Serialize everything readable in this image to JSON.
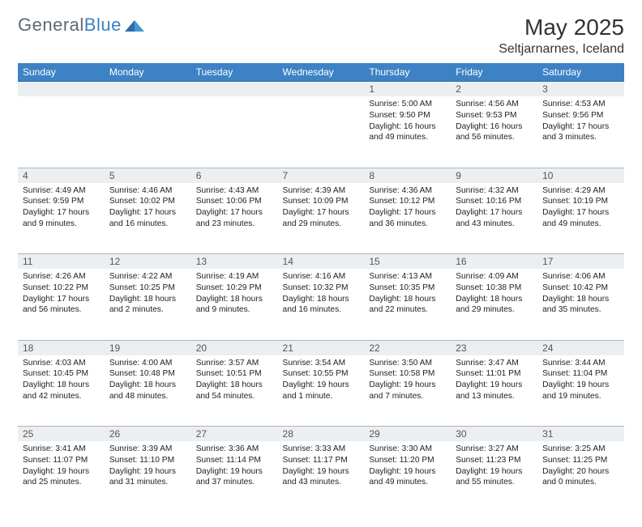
{
  "logo": {
    "word1": "General",
    "word2": "Blue",
    "mark_color": "#2e6da6"
  },
  "title": "May 2025",
  "location": "Seltjarnarnes, Iceland",
  "colors": {
    "header_bg": "#3d82c4",
    "header_text": "#ffffff",
    "daynum_bg": "#eceff1",
    "daynum_border": "#aab5bf",
    "body_text": "#222222",
    "page_bg": "#ffffff"
  },
  "day_headers": [
    "Sunday",
    "Monday",
    "Tuesday",
    "Wednesday",
    "Thursday",
    "Friday",
    "Saturday"
  ],
  "weeks": [
    [
      null,
      null,
      null,
      null,
      {
        "n": "1",
        "sr": "5:00 AM",
        "ss": "9:50 PM",
        "dl": "16 hours and 49 minutes."
      },
      {
        "n": "2",
        "sr": "4:56 AM",
        "ss": "9:53 PM",
        "dl": "16 hours and 56 minutes."
      },
      {
        "n": "3",
        "sr": "4:53 AM",
        "ss": "9:56 PM",
        "dl": "17 hours and 3 minutes."
      }
    ],
    [
      {
        "n": "4",
        "sr": "4:49 AM",
        "ss": "9:59 PM",
        "dl": "17 hours and 9 minutes."
      },
      {
        "n": "5",
        "sr": "4:46 AM",
        "ss": "10:02 PM",
        "dl": "17 hours and 16 minutes."
      },
      {
        "n": "6",
        "sr": "4:43 AM",
        "ss": "10:06 PM",
        "dl": "17 hours and 23 minutes."
      },
      {
        "n": "7",
        "sr": "4:39 AM",
        "ss": "10:09 PM",
        "dl": "17 hours and 29 minutes."
      },
      {
        "n": "8",
        "sr": "4:36 AM",
        "ss": "10:12 PM",
        "dl": "17 hours and 36 minutes."
      },
      {
        "n": "9",
        "sr": "4:32 AM",
        "ss": "10:16 PM",
        "dl": "17 hours and 43 minutes."
      },
      {
        "n": "10",
        "sr": "4:29 AM",
        "ss": "10:19 PM",
        "dl": "17 hours and 49 minutes."
      }
    ],
    [
      {
        "n": "11",
        "sr": "4:26 AM",
        "ss": "10:22 PM",
        "dl": "17 hours and 56 minutes."
      },
      {
        "n": "12",
        "sr": "4:22 AM",
        "ss": "10:25 PM",
        "dl": "18 hours and 2 minutes."
      },
      {
        "n": "13",
        "sr": "4:19 AM",
        "ss": "10:29 PM",
        "dl": "18 hours and 9 minutes."
      },
      {
        "n": "14",
        "sr": "4:16 AM",
        "ss": "10:32 PM",
        "dl": "18 hours and 16 minutes."
      },
      {
        "n": "15",
        "sr": "4:13 AM",
        "ss": "10:35 PM",
        "dl": "18 hours and 22 minutes."
      },
      {
        "n": "16",
        "sr": "4:09 AM",
        "ss": "10:38 PM",
        "dl": "18 hours and 29 minutes."
      },
      {
        "n": "17",
        "sr": "4:06 AM",
        "ss": "10:42 PM",
        "dl": "18 hours and 35 minutes."
      }
    ],
    [
      {
        "n": "18",
        "sr": "4:03 AM",
        "ss": "10:45 PM",
        "dl": "18 hours and 42 minutes."
      },
      {
        "n": "19",
        "sr": "4:00 AM",
        "ss": "10:48 PM",
        "dl": "18 hours and 48 minutes."
      },
      {
        "n": "20",
        "sr": "3:57 AM",
        "ss": "10:51 PM",
        "dl": "18 hours and 54 minutes."
      },
      {
        "n": "21",
        "sr": "3:54 AM",
        "ss": "10:55 PM",
        "dl": "19 hours and 1 minute."
      },
      {
        "n": "22",
        "sr": "3:50 AM",
        "ss": "10:58 PM",
        "dl": "19 hours and 7 minutes."
      },
      {
        "n": "23",
        "sr": "3:47 AM",
        "ss": "11:01 PM",
        "dl": "19 hours and 13 minutes."
      },
      {
        "n": "24",
        "sr": "3:44 AM",
        "ss": "11:04 PM",
        "dl": "19 hours and 19 minutes."
      }
    ],
    [
      {
        "n": "25",
        "sr": "3:41 AM",
        "ss": "11:07 PM",
        "dl": "19 hours and 25 minutes."
      },
      {
        "n": "26",
        "sr": "3:39 AM",
        "ss": "11:10 PM",
        "dl": "19 hours and 31 minutes."
      },
      {
        "n": "27",
        "sr": "3:36 AM",
        "ss": "11:14 PM",
        "dl": "19 hours and 37 minutes."
      },
      {
        "n": "28",
        "sr": "3:33 AM",
        "ss": "11:17 PM",
        "dl": "19 hours and 43 minutes."
      },
      {
        "n": "29",
        "sr": "3:30 AM",
        "ss": "11:20 PM",
        "dl": "19 hours and 49 minutes."
      },
      {
        "n": "30",
        "sr": "3:27 AM",
        "ss": "11:23 PM",
        "dl": "19 hours and 55 minutes."
      },
      {
        "n": "31",
        "sr": "3:25 AM",
        "ss": "11:25 PM",
        "dl": "20 hours and 0 minutes."
      }
    ]
  ],
  "labels": {
    "sunrise": "Sunrise: ",
    "sunset": "Sunset: ",
    "daylight": "Daylight: "
  }
}
